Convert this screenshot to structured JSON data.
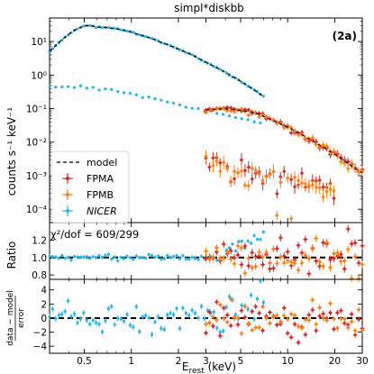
{
  "chart_data": {
    "type": "scatter",
    "title": "simpl*diskbb",
    "panel_label": "(2a)",
    "x_axis": {
      "label_main": "E",
      "label_sub": "rest",
      "label_unit": " (keV)",
      "scale": "log",
      "range": [
        0.3,
        30
      ],
      "ticks": [
        {
          "v": 0.5,
          "label": "0.5"
        },
        {
          "v": 1,
          "label": "1"
        },
        {
          "v": 2,
          "label": "2"
        },
        {
          "v": 3,
          "label": "3"
        },
        {
          "v": 5,
          "label": "5"
        },
        {
          "v": 10,
          "label": "10"
        },
        {
          "v": 20,
          "label": "20"
        },
        {
          "v": 30,
          "label": "30"
        }
      ]
    },
    "panels": [
      {
        "id": "spectrum",
        "ylabel": "counts s⁻¹ keV⁻¹",
        "yscale": "log",
        "ylim": [
          4e-05,
          50
        ],
        "yticks": [
          {
            "v": 10,
            "label": "10¹"
          },
          {
            "v": 1,
            "label": "10⁰"
          },
          {
            "v": 0.1,
            "label": "10⁻¹"
          },
          {
            "v": 0.01,
            "label": "10⁻²"
          },
          {
            "v": 0.001,
            "label": "10⁻³"
          },
          {
            "v": 0.0001,
            "label": "10⁻⁴"
          }
        ]
      },
      {
        "id": "ratio",
        "ylabel": "Ratio",
        "yscale": "linear",
        "ylim": [
          0.75,
          1.4
        ],
        "yticks": [
          {
            "v": 0.8,
            "label": "0.8"
          },
          {
            "v": 1.0,
            "label": "1.0"
          },
          {
            "v": 1.2,
            "label": "1.2"
          }
        ],
        "reference_line": 1.0,
        "annotation": "χ²/dof = 609/299"
      },
      {
        "id": "residuals",
        "ylabel_top": "data − model",
        "ylabel_bottom": "error",
        "yscale": "linear",
        "ylim": [
          -5,
          5.5
        ],
        "yticks": [
          {
            "v": 4,
            "label": "4"
          },
          {
            "v": 2,
            "label": "2"
          },
          {
            "v": 0,
            "label": "0"
          },
          {
            "v": -2,
            "label": "−2"
          },
          {
            "v": -4,
            "label": "−4"
          }
        ],
        "reference_line": 0
      }
    ],
    "legend": {
      "placement": "lower-left",
      "entries": [
        {
          "label": "model",
          "style": "dashed-line",
          "color": "#000000"
        },
        {
          "label": "FPMA",
          "style": "errorbar",
          "color": "#d62728"
        },
        {
          "label": "FPMB",
          "style": "errorbar",
          "color": "#ff7f0e"
        },
        {
          "label": "NICER",
          "style": "errorbar",
          "color": "#1fb8ea",
          "italic": true
        }
      ]
    },
    "series": [
      {
        "name": "NICER",
        "color": "#1fb8ea",
        "x_range": [
          0.3,
          7.0
        ],
        "source_points": [
          [
            0.3,
            5
          ],
          [
            0.35,
            10
          ],
          [
            0.4,
            17
          ],
          [
            0.45,
            24
          ],
          [
            0.5,
            29
          ],
          [
            0.55,
            30
          ],
          [
            0.6,
            27
          ],
          [
            0.7,
            26
          ],
          [
            0.8,
            24
          ],
          [
            1.0,
            19
          ],
          [
            1.3,
            13
          ],
          [
            1.6,
            9
          ],
          [
            2.0,
            6
          ],
          [
            2.5,
            3.8
          ],
          [
            3.0,
            2.4
          ],
          [
            4.0,
            1.2
          ],
          [
            5.0,
            0.65
          ],
          [
            6.0,
            0.38
          ],
          [
            7.0,
            0.23
          ]
        ],
        "background_points": [
          [
            0.4,
            0.45
          ],
          [
            0.5,
            0.42
          ],
          [
            0.7,
            0.36
          ],
          [
            1.0,
            0.27
          ],
          [
            1.5,
            0.18
          ],
          [
            2.0,
            0.13
          ],
          [
            3.0,
            0.085
          ],
          [
            4.0,
            0.065
          ],
          [
            5.0,
            0.052
          ],
          [
            7.0,
            0.036
          ]
        ],
        "ratio_mean": 1.0,
        "ratio_deviation_region": {
          "x": [
            4.0,
            7.0
          ],
          "peak": 1.35
        }
      },
      {
        "name": "FPMA",
        "color": "#d62728",
        "x_range": [
          3.0,
          30.0
        ],
        "source_points": [
          [
            3.0,
            0.095
          ],
          [
            4.0,
            0.1
          ],
          [
            5.0,
            0.09
          ],
          [
            6.0,
            0.08
          ],
          [
            7.0,
            0.06
          ],
          [
            8.0,
            0.045
          ],
          [
            10.0,
            0.028
          ],
          [
            12.0,
            0.018
          ],
          [
            15.0,
            0.01
          ],
          [
            20.0,
            0.0045
          ],
          [
            25.0,
            0.0022
          ],
          [
            30.0,
            0.0013
          ]
        ],
        "background_points": [
          [
            3.0,
            0.0025
          ],
          [
            4.0,
            0.0019
          ],
          [
            5.0,
            0.0015
          ],
          [
            7.0,
            0.0011
          ],
          [
            10.0,
            0.0008
          ],
          [
            15.0,
            0.0005
          ],
          [
            20.0,
            0.0003
          ]
        ]
      },
      {
        "name": "FPMB",
        "color": "#ff7f0e",
        "x_range": [
          3.0,
          30.0
        ],
        "source_points": [
          [
            3.0,
            0.09
          ],
          [
            4.0,
            0.095
          ],
          [
            5.0,
            0.088
          ],
          [
            6.0,
            0.075
          ],
          [
            7.0,
            0.058
          ],
          [
            8.0,
            0.044
          ],
          [
            10.0,
            0.027
          ],
          [
            12.0,
            0.017
          ],
          [
            15.0,
            0.0095
          ],
          [
            20.0,
            0.0043
          ],
          [
            25.0,
            0.0021
          ],
          [
            30.0,
            0.0012
          ]
        ],
        "background_points": [
          [
            3.0,
            0.0022
          ],
          [
            4.0,
            0.0017
          ],
          [
            5.0,
            0.0014
          ],
          [
            7.0,
            0.001
          ],
          [
            10.0,
            0.0007
          ],
          [
            15.0,
            0.00045
          ],
          [
            20.0,
            0.0003
          ]
        ]
      },
      {
        "name": "model",
        "color": "#000000",
        "style": "dashed-line",
        "segments": [
          [
            [
              0.3,
              5
            ],
            [
              0.35,
              10
            ],
            [
              0.4,
              17
            ],
            [
              0.45,
              24
            ],
            [
              0.5,
              29
            ],
            [
              0.55,
              30
            ],
            [
              0.6,
              27
            ],
            [
              0.7,
              26
            ],
            [
              0.8,
              24
            ],
            [
              1.0,
              19
            ],
            [
              1.3,
              13
            ],
            [
              1.6,
              9
            ],
            [
              2.0,
              6
            ],
            [
              2.5,
              3.8
            ],
            [
              3.0,
              2.4
            ],
            [
              4.0,
              1.2
            ],
            [
              5.0,
              0.65
            ],
            [
              6.0,
              0.38
            ],
            [
              7.0,
              0.23
            ]
          ],
          [
            [
              3.0,
              0.093
            ],
            [
              4.0,
              0.098
            ],
            [
              5.0,
              0.089
            ],
            [
              6.0,
              0.078
            ],
            [
              7.0,
              0.059
            ],
            [
              8.0,
              0.045
            ],
            [
              10.0,
              0.028
            ],
            [
              12.0,
              0.018
            ],
            [
              15.0,
              0.0098
            ],
            [
              20.0,
              0.0044
            ],
            [
              25.0,
              0.0021
            ],
            [
              30.0,
              0.0012
            ]
          ]
        ]
      }
    ]
  }
}
